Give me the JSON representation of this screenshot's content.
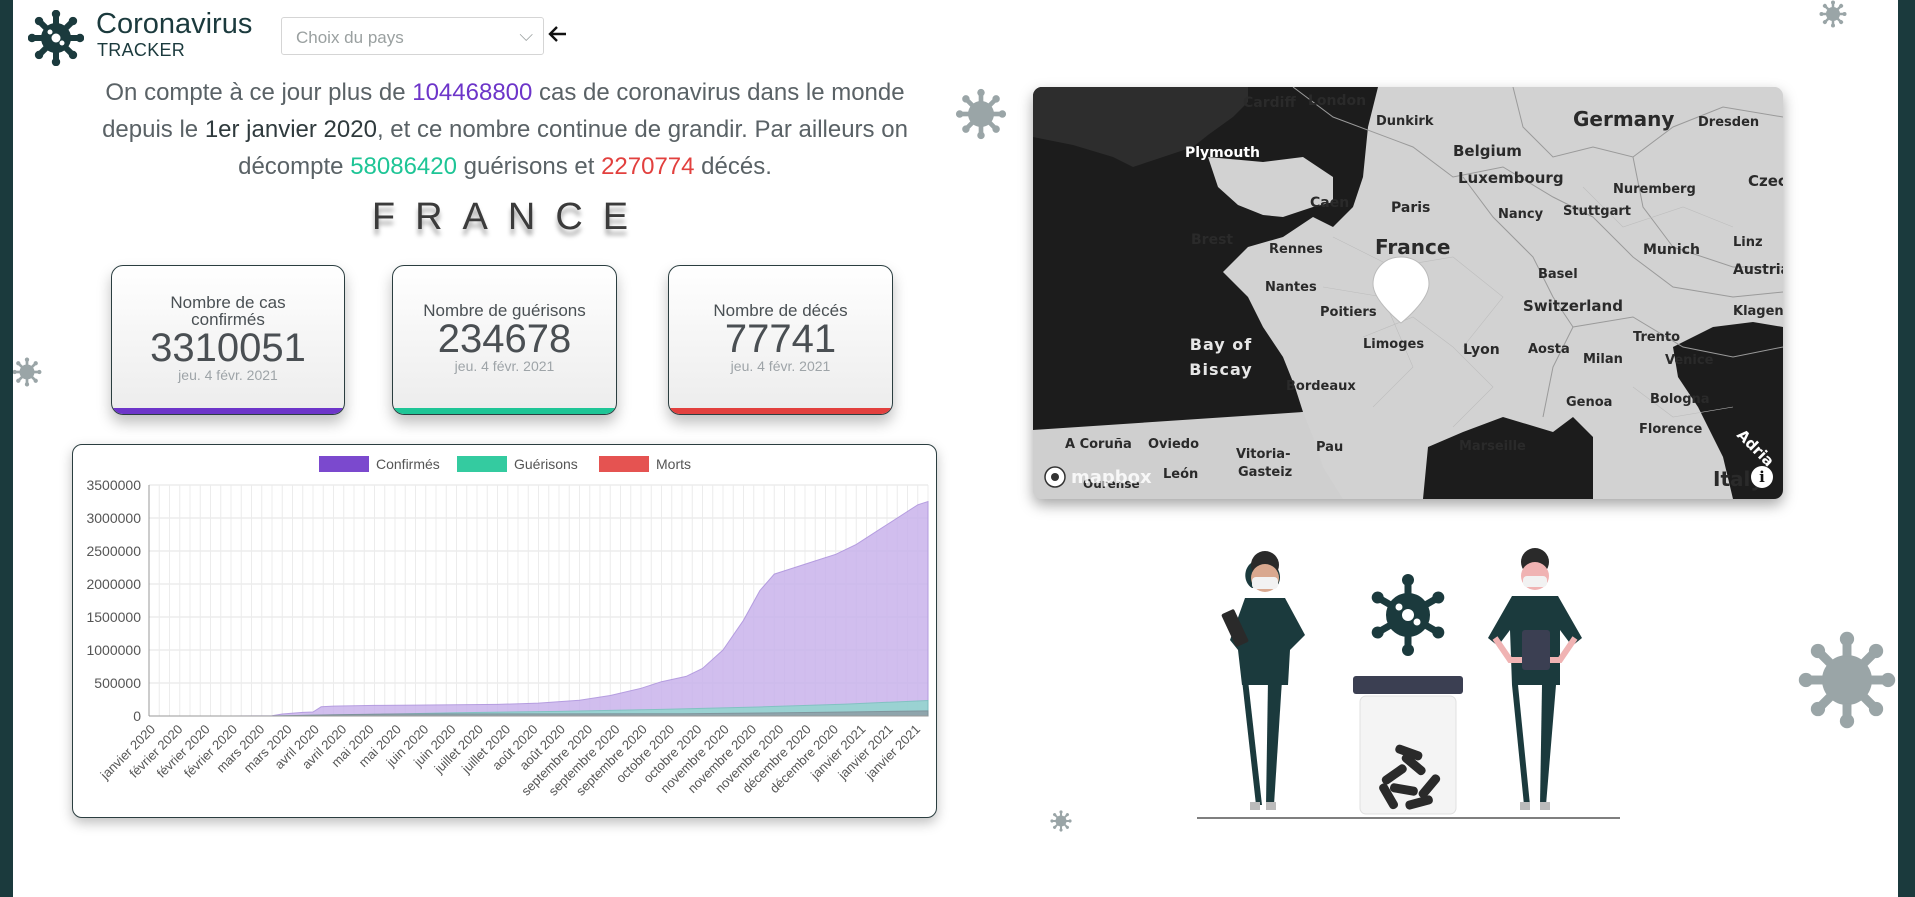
{
  "header": {
    "title": "Coronavirus",
    "subtitle": "TRACKER",
    "country_placeholder": "Choix du pays"
  },
  "intro": {
    "p1": "On compte à ce jour plus de ",
    "world_cases": "104468800",
    "p2": " cas de coronavirus dans le monde depuis le ",
    "start_date": "1er janvier 2020",
    "p3": ", et ce nombre continue de grandir. Par ailleurs on décompte ",
    "world_recovered": "58086420",
    "p4": " guérisons et ",
    "world_deaths": "2270774",
    "p5": " décés."
  },
  "country": "FRANCE",
  "cards": {
    "confirmed": {
      "label": "Nombre de cas confirmés",
      "value": "3310051",
      "date": "jeu. 4 févr. 2021",
      "color": "#6d35c9"
    },
    "recovered": {
      "label": "Nombre de guérisons",
      "value": "234678",
      "date": "jeu. 4 févr. 2021",
      "color": "#1ec596"
    },
    "deaths": {
      "label": "Nombre de décés",
      "value": "77741",
      "date": "jeu. 4 févr. 2021",
      "color": "#e2403e"
    }
  },
  "colors": {
    "purple": "#6d35c9",
    "green": "#1ec596",
    "red": "#e2403e",
    "dark_teal": "#1b3a3d",
    "gray_virus": "#9aa5a7"
  },
  "chart_data": {
    "type": "bar",
    "legend": [
      {
        "name": "Confirmés",
        "color": "#6d35c9"
      },
      {
        "name": "Guérisons",
        "color": "#1ec596"
      },
      {
        "name": "Morts",
        "color": "#e2403e"
      }
    ],
    "legend_position": "top-center",
    "ylim": [
      0,
      3500000
    ],
    "yticks": [
      "3500000",
      "3000000",
      "2500000",
      "2000000",
      "1500000",
      "1000000",
      "500000",
      "0"
    ],
    "xticks": [
      "janvier 2020",
      "février 2020",
      "février 2020",
      "février 2020",
      "mars 2020",
      "mars 2020",
      "avril 2020",
      "avril 2020",
      "mai 2020",
      "mai 2020",
      "juin 2020",
      "juin 2020",
      "juillet 2020",
      "juillet 2020",
      "août 2020",
      "août 2020",
      "septembre 2020",
      "septembre 2020",
      "septembre 2020",
      "octobre 2020",
      "octobre 2020",
      "novembre 2020",
      "novembre 2020",
      "novembre 2020",
      "décembre 2020",
      "décembre 2020",
      "janvier 2021",
      "janvier 2021",
      "janvier 2021"
    ],
    "grid": true,
    "series": [
      {
        "name": "Confirmés",
        "points": [
          [
            0,
            0
          ],
          [
            40,
            0
          ],
          [
            60,
            5000
          ],
          [
            65,
            30000
          ],
          [
            75,
            55000
          ],
          [
            80,
            60000
          ],
          [
            84,
            140000
          ],
          [
            90,
            150000
          ],
          [
            110,
            160000
          ],
          [
            130,
            165000
          ],
          [
            150,
            170000
          ],
          [
            170,
            175000
          ],
          [
            190,
            195000
          ],
          [
            210,
            240000
          ],
          [
            225,
            310000
          ],
          [
            240,
            420000
          ],
          [
            250,
            520000
          ],
          [
            262,
            600000
          ],
          [
            270,
            720000
          ],
          [
            280,
            1000000
          ],
          [
            290,
            1450000
          ],
          [
            298,
            1900000
          ],
          [
            305,
            2150000
          ],
          [
            315,
            2250000
          ],
          [
            325,
            2350000
          ],
          [
            335,
            2450000
          ],
          [
            345,
            2600000
          ],
          [
            355,
            2800000
          ],
          [
            365,
            3000000
          ],
          [
            375,
            3200000
          ],
          [
            380,
            3250000
          ]
        ]
      },
      {
        "name": "Guérisons",
        "points": [
          [
            0,
            0
          ],
          [
            60,
            0
          ],
          [
            80,
            10000
          ],
          [
            110,
            25000
          ],
          [
            150,
            50000
          ],
          [
            200,
            70000
          ],
          [
            250,
            100000
          ],
          [
            300,
            140000
          ],
          [
            340,
            180000
          ],
          [
            380,
            235000
          ]
        ]
      },
      {
        "name": "Morts",
        "points": [
          [
            0,
            0
          ],
          [
            60,
            0
          ],
          [
            90,
            20000
          ],
          [
            120,
            30000
          ],
          [
            200,
            32000
          ],
          [
            260,
            35000
          ],
          [
            300,
            45000
          ],
          [
            340,
            60000
          ],
          [
            380,
            78000
          ]
        ]
      }
    ]
  },
  "map": {
    "attribution": "mapbox",
    "labels": [
      {
        "text": "Cardiff",
        "cls": ""
      },
      {
        "text": "London",
        "cls": ""
      },
      {
        "text": "Dunkirk",
        "cls": ""
      },
      {
        "text": "Germany",
        "cls": ""
      },
      {
        "text": "Dresden",
        "cls": ""
      },
      {
        "text": "Plymouth",
        "cls": "wt"
      },
      {
        "text": "Belgium",
        "cls": ""
      },
      {
        "text": "Luxembourg",
        "cls": ""
      },
      {
        "text": "Czec",
        "cls": ""
      },
      {
        "text": "Nuremberg",
        "cls": ""
      },
      {
        "text": "Caen",
        "cls": ""
      },
      {
        "text": "Paris",
        "cls": ""
      },
      {
        "text": "Nancy",
        "cls": ""
      },
      {
        "text": "Stuttgart",
        "cls": ""
      },
      {
        "text": "Brest",
        "cls": ""
      },
      {
        "text": "Rennes",
        "cls": ""
      },
      {
        "text": "France",
        "cls": ""
      },
      {
        "text": "Munich",
        "cls": ""
      },
      {
        "text": "Linz",
        "cls": ""
      },
      {
        "text": "Basel",
        "cls": ""
      },
      {
        "text": "Austria",
        "cls": ""
      },
      {
        "text": "Nantes",
        "cls": ""
      },
      {
        "text": "Switzerland",
        "cls": ""
      },
      {
        "text": "Klagenfur",
        "cls": ""
      },
      {
        "text": "Poitiers",
        "cls": ""
      },
      {
        "text": "Trento",
        "cls": ""
      },
      {
        "text": "Bay of Biscay",
        "cls": "sea"
      },
      {
        "text": "Limoges",
        "cls": ""
      },
      {
        "text": "Lyon",
        "cls": ""
      },
      {
        "text": "Aosta",
        "cls": ""
      },
      {
        "text": "Milan",
        "cls": ""
      },
      {
        "text": "Venice",
        "cls": ""
      },
      {
        "text": "Bordeaux",
        "cls": ""
      },
      {
        "text": "Genoa",
        "cls": ""
      },
      {
        "text": "Bologna",
        "cls": ""
      },
      {
        "text": "Florence",
        "cls": ""
      },
      {
        "text": "A Coruña",
        "cls": ""
      },
      {
        "text": "Oviedo",
        "cls": ""
      },
      {
        "text": "Vitoria-",
        "cls": ""
      },
      {
        "text": "Gasteiz",
        "cls": ""
      },
      {
        "text": "Pau",
        "cls": ""
      },
      {
        "text": "Marseille",
        "cls": ""
      },
      {
        "text": "Adria",
        "cls": "wt"
      },
      {
        "text": "León",
        "cls": ""
      },
      {
        "text": "Ourense",
        "cls": ""
      },
      {
        "text": "Italy",
        "cls": ""
      }
    ]
  }
}
